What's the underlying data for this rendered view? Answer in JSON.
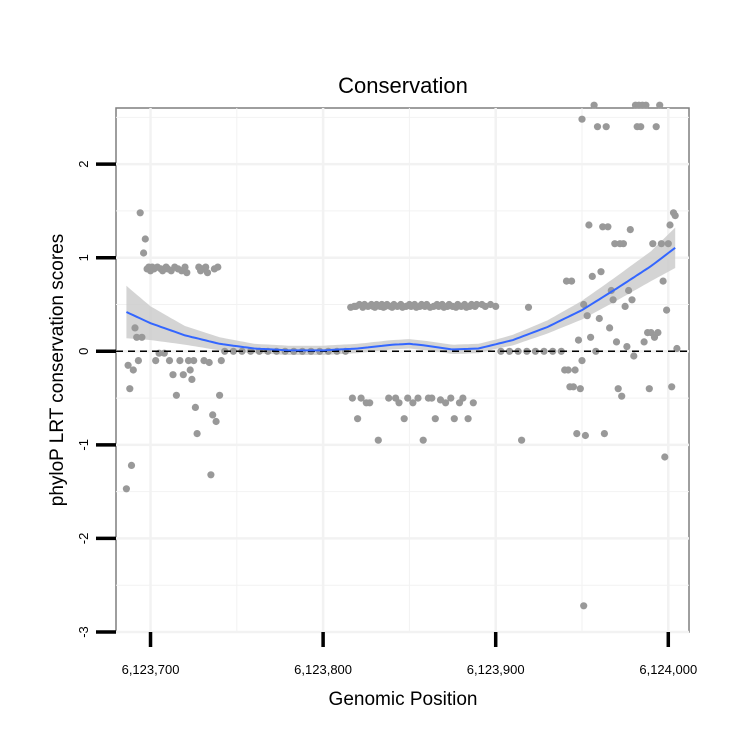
{
  "chart_data": {
    "type": "scatter",
    "title": "Conservation",
    "xlabel": "Genomic Position",
    "ylabel": "phyloP LRT conservation scores",
    "xlim": [
      6123680,
      6124012
    ],
    "ylim": [
      -3,
      2.6
    ],
    "x_ticks": [
      6123700,
      6123800,
      6123900,
      6124000
    ],
    "x_tick_labels": [
      "6,123,700",
      "6,123,800",
      "6,123,900",
      "6,124,000"
    ],
    "y_ticks": [
      -3,
      -2,
      -1,
      0,
      1,
      2
    ],
    "y_tick_labels": [
      "-3",
      "-2",
      "-1",
      "0",
      "1",
      "2"
    ],
    "reference_line": 0,
    "colors": {
      "points": "#999999",
      "smooth_line": "#3366ff",
      "confidence_band": "#cccccc",
      "panel_background": "#ffffff",
      "grid": "#f2f2f2",
      "panel_border": "#7f7f7f"
    },
    "series": [
      {
        "name": "scores",
        "points": [
          [
            6123686,
            -1.47
          ],
          [
            6123687,
            -0.15
          ],
          [
            6123688,
            -0.4
          ],
          [
            6123689,
            -1.22
          ],
          [
            6123690,
            -0.2
          ],
          [
            6123691,
            0.25
          ],
          [
            6123692,
            0.15
          ],
          [
            6123693,
            -0.1
          ],
          [
            6123694,
            1.48
          ],
          [
            6123695,
            0.15
          ],
          [
            6123696,
            1.05
          ],
          [
            6123697,
            1.2
          ],
          [
            6123698,
            0.88
          ],
          [
            6123699,
            0.9
          ],
          [
            6123700,
            0.86
          ],
          [
            6123701,
            0.9
          ],
          [
            6123702,
            0.88
          ],
          [
            6123703,
            -0.1
          ],
          [
            6123704,
            0.9
          ],
          [
            6123705,
            -0.02
          ],
          [
            6123706,
            0.88
          ],
          [
            6123707,
            0.86
          ],
          [
            6123708,
            -0.02
          ],
          [
            6123709,
            0.9
          ],
          [
            6123710,
            0.88
          ],
          [
            6123711,
            -0.1
          ],
          [
            6123712,
            0.86
          ],
          [
            6123713,
            -0.25
          ],
          [
            6123714,
            0.9
          ],
          [
            6123715,
            -0.47
          ],
          [
            6123716,
            0.88
          ],
          [
            6123717,
            -0.1
          ],
          [
            6123718,
            0.86
          ],
          [
            6123719,
            -0.25
          ],
          [
            6123720,
            0.9
          ],
          [
            6123721,
            0.84
          ],
          [
            6123722,
            -0.1
          ],
          [
            6123723,
            -0.2
          ],
          [
            6123724,
            -0.3
          ],
          [
            6123725,
            -0.1
          ],
          [
            6123726,
            -0.6
          ],
          [
            6123727,
            -0.88
          ],
          [
            6123728,
            0.9
          ],
          [
            6123729,
            0.86
          ],
          [
            6123730,
            0.88
          ],
          [
            6123731,
            -0.1
          ],
          [
            6123732,
            0.9
          ],
          [
            6123733,
            0.84
          ],
          [
            6123734,
            -0.12
          ],
          [
            6123735,
            -1.32
          ],
          [
            6123736,
            -0.68
          ],
          [
            6123737,
            0.88
          ],
          [
            6123738,
            -0.75
          ],
          [
            6123739,
            0.9
          ],
          [
            6123740,
            -0.47
          ],
          [
            6123741,
            -0.1
          ],
          [
            6123743,
            0.0
          ],
          [
            6123748,
            0.0
          ],
          [
            6123753,
            0.0
          ],
          [
            6123758,
            0.0
          ],
          [
            6123763,
            0.0
          ],
          [
            6123768,
            0.0
          ],
          [
            6123773,
            0.0
          ],
          [
            6123778,
            0.0
          ],
          [
            6123783,
            0.0
          ],
          [
            6123788,
            0.0
          ],
          [
            6123793,
            0.0
          ],
          [
            6123798,
            0.0
          ],
          [
            6123803,
            0.0
          ],
          [
            6123808,
            0.0
          ],
          [
            6123813,
            0.0
          ],
          [
            6123816,
            0.47
          ],
          [
            6123817,
            -0.5
          ],
          [
            6123818,
            0.48
          ],
          [
            6123819,
            0.48
          ],
          [
            6123820,
            -0.72
          ],
          [
            6123821,
            0.5
          ],
          [
            6123822,
            -0.5
          ],
          [
            6123823,
            0.47
          ],
          [
            6123824,
            0.5
          ],
          [
            6123825,
            -0.55
          ],
          [
            6123826,
            0.48
          ],
          [
            6123827,
            -0.55
          ],
          [
            6123828,
            0.5
          ],
          [
            6123829,
            0.48
          ],
          [
            6123830,
            0.47
          ],
          [
            6123831,
            0.5
          ],
          [
            6123832,
            -0.95
          ],
          [
            6123833,
            0.48
          ],
          [
            6123834,
            0.5
          ],
          [
            6123835,
            0.47
          ],
          [
            6123836,
            0.48
          ],
          [
            6123837,
            0.5
          ],
          [
            6123838,
            -0.5
          ],
          [
            6123839,
            0.48
          ],
          [
            6123840,
            0.47
          ],
          [
            6123841,
            0.5
          ],
          [
            6123842,
            -0.5
          ],
          [
            6123843,
            0.48
          ],
          [
            6123844,
            -0.55
          ],
          [
            6123845,
            0.5
          ],
          [
            6123846,
            0.47
          ],
          [
            6123847,
            -0.72
          ],
          [
            6123848,
            0.48
          ],
          [
            6123849,
            -0.5
          ],
          [
            6123850,
            0.5
          ],
          [
            6123851,
            0.48
          ],
          [
            6123852,
            -0.55
          ],
          [
            6123853,
            0.5
          ],
          [
            6123854,
            0.47
          ],
          [
            6123855,
            -0.5
          ],
          [
            6123856,
            0.48
          ],
          [
            6123857,
            0.5
          ],
          [
            6123858,
            -0.95
          ],
          [
            6123859,
            0.48
          ],
          [
            6123860,
            0.5
          ],
          [
            6123861,
            -0.5
          ],
          [
            6123862,
            0.47
          ],
          [
            6123863,
            -0.5
          ],
          [
            6123864,
            0.48
          ],
          [
            6123865,
            -0.72
          ],
          [
            6123866,
            0.5
          ],
          [
            6123867,
            0.48
          ],
          [
            6123868,
            -0.52
          ],
          [
            6123869,
            0.5
          ],
          [
            6123870,
            0.47
          ],
          [
            6123871,
            -0.55
          ],
          [
            6123872,
            0.48
          ],
          [
            6123873,
            0.5
          ],
          [
            6123874,
            -0.5
          ],
          [
            6123875,
            0.48
          ],
          [
            6123876,
            -0.72
          ],
          [
            6123877,
            0.47
          ],
          [
            6123878,
            0.5
          ],
          [
            6123879,
            -0.55
          ],
          [
            6123880,
            0.48
          ],
          [
            6123881,
            -0.5
          ],
          [
            6123882,
            0.5
          ],
          [
            6123883,
            0.47
          ],
          [
            6123884,
            -0.72
          ],
          [
            6123885,
            0.48
          ],
          [
            6123886,
            0.5
          ],
          [
            6123887,
            -0.55
          ],
          [
            6123888,
            0.48
          ],
          [
            6123889,
            0.5
          ],
          [
            6123892,
            0.5
          ],
          [
            6123894,
            0.48
          ],
          [
            6123897,
            0.5
          ],
          [
            6123900,
            0.48
          ],
          [
            6123903,
            0.0
          ],
          [
            6123908,
            0.0
          ],
          [
            6123913,
            0.0
          ],
          [
            6123915,
            -0.95
          ],
          [
            6123918,
            0.0
          ],
          [
            6123919,
            0.47
          ],
          [
            6123923,
            0.0
          ],
          [
            6123928,
            0.0
          ],
          [
            6123933,
            0.0
          ],
          [
            6123938,
            0.0
          ],
          [
            6123940,
            -0.2
          ],
          [
            6123941,
            0.75
          ],
          [
            6123942,
            -0.2
          ],
          [
            6123943,
            -0.38
          ],
          [
            6123944,
            0.75
          ],
          [
            6123945,
            -0.38
          ],
          [
            6123946,
            -0.2
          ],
          [
            6123947,
            -0.88
          ],
          [
            6123948,
            0.12
          ],
          [
            6123949,
            -0.4
          ],
          [
            6123950,
            2.48
          ],
          [
            6123950,
            -0.1
          ],
          [
            6123951,
            0.5
          ],
          [
            6123951,
            -2.72
          ],
          [
            6123952,
            -0.9
          ],
          [
            6123953,
            0.38
          ],
          [
            6123954,
            1.35
          ],
          [
            6123955,
            0.15
          ],
          [
            6123956,
            0.8
          ],
          [
            6123957,
            2.63
          ],
          [
            6123958,
            0.0
          ],
          [
            6123959,
            2.4
          ],
          [
            6123960,
            0.35
          ],
          [
            6123961,
            0.85
          ],
          [
            6123962,
            1.33
          ],
          [
            6123963,
            -0.88
          ],
          [
            6123964,
            2.4
          ],
          [
            6123965,
            1.33
          ],
          [
            6123966,
            0.25
          ],
          [
            6123967,
            0.65
          ],
          [
            6123968,
            0.55
          ],
          [
            6123969,
            1.15
          ],
          [
            6123970,
            0.1
          ],
          [
            6123971,
            -0.4
          ],
          [
            6123972,
            1.15
          ],
          [
            6123973,
            -0.48
          ],
          [
            6123974,
            1.15
          ],
          [
            6123975,
            0.48
          ],
          [
            6123976,
            0.05
          ],
          [
            6123977,
            0.65
          ],
          [
            6123978,
            1.3
          ],
          [
            6123979,
            0.55
          ],
          [
            6123980,
            -0.05
          ],
          [
            6123981,
            2.63
          ],
          [
            6123982,
            2.4
          ],
          [
            6123983,
            2.63
          ],
          [
            6123984,
            2.4
          ],
          [
            6123985,
            2.63
          ],
          [
            6123986,
            0.1
          ],
          [
            6123987,
            2.63
          ],
          [
            6123988,
            0.2
          ],
          [
            6123989,
            -0.4
          ],
          [
            6123990,
            0.2
          ],
          [
            6123991,
            1.15
          ],
          [
            6123992,
            0.15
          ],
          [
            6123993,
            2.4
          ],
          [
            6123994,
            0.2
          ],
          [
            6123995,
            2.63
          ],
          [
            6123996,
            1.15
          ],
          [
            6123997,
            0.75
          ],
          [
            6123998,
            -1.13
          ],
          [
            6123999,
            0.44
          ],
          [
            6124000,
            1.15
          ],
          [
            6124001,
            1.35
          ],
          [
            6124002,
            -0.38
          ],
          [
            6124003,
            1.48
          ],
          [
            6124004,
            1.45
          ],
          [
            6124005,
            0.03
          ]
        ]
      }
    ],
    "smooth": [
      [
        6123686,
        0.42
      ],
      [
        6123700,
        0.3
      ],
      [
        6123720,
        0.17
      ],
      [
        6123740,
        0.08
      ],
      [
        6123760,
        0.03
      ],
      [
        6123780,
        0.01
      ],
      [
        6123800,
        0.01
      ],
      [
        6123820,
        0.03
      ],
      [
        6123840,
        0.07
      ],
      [
        6123850,
        0.08
      ],
      [
        6123860,
        0.06
      ],
      [
        6123875,
        0.02
      ],
      [
        6123890,
        0.03
      ],
      [
        6123910,
        0.12
      ],
      [
        6123930,
        0.26
      ],
      [
        6123950,
        0.44
      ],
      [
        6123970,
        0.67
      ],
      [
        6123990,
        0.91
      ],
      [
        6124005,
        1.12
      ]
    ],
    "band_halfwidth": [
      [
        6123686,
        0.28
      ],
      [
        6123700,
        0.18
      ],
      [
        6123720,
        0.1
      ],
      [
        6123740,
        0.07
      ],
      [
        6123760,
        0.05
      ],
      [
        6123800,
        0.05
      ],
      [
        6123850,
        0.05
      ],
      [
        6123900,
        0.05
      ],
      [
        6123930,
        0.07
      ],
      [
        6123950,
        0.1
      ],
      [
        6123970,
        0.13
      ],
      [
        6123990,
        0.16
      ],
      [
        6124005,
        0.22
      ]
    ]
  }
}
